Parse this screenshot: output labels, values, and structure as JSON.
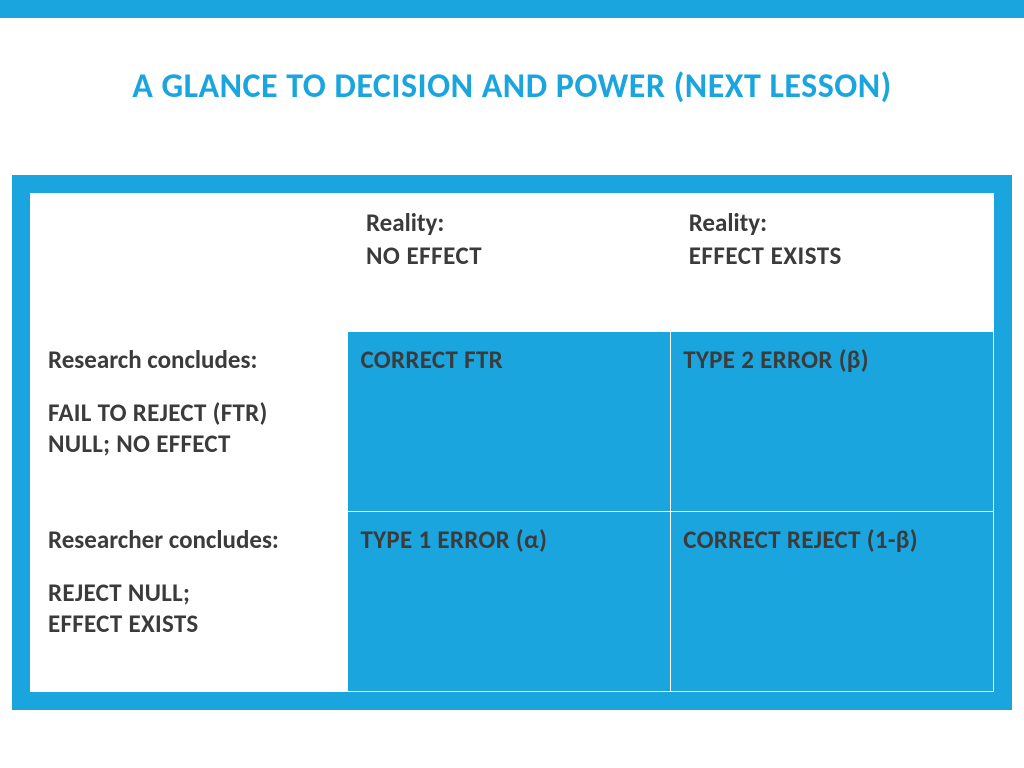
{
  "colors": {
    "accent": "#1ba5de",
    "title": "#1ba5de",
    "text_dark": "#3b3b3b",
    "cell_fill": "#1ba5de",
    "cell_border": "#ffffff",
    "frame_bg": "#1ba5de",
    "page_bg": "#ffffff"
  },
  "title": "A GLANCE TO DECISION AND POWER (NEXT LESSON)",
  "table": {
    "col_headers": [
      {
        "line1": "Reality:",
        "line2": "NO EFFECT"
      },
      {
        "line1": "Reality:",
        "line2": "EFFECT EXISTS"
      }
    ],
    "rows": [
      {
        "label_line1": "Research concludes:",
        "label_line2": "FAIL TO REJECT (FTR)",
        "label_line3": "NULL; NO EFFECT",
        "cells": [
          "CORRECT FTR",
          "TYPE 2 ERROR (β)"
        ]
      },
      {
        "label_line1": "Researcher concludes:",
        "label_line2": "REJECT NULL;",
        "label_line3": "EFFECT EXISTS",
        "cells": [
          "TYPE 1 ERROR (α)",
          "CORRECT REJECT (1-β)"
        ]
      }
    ]
  }
}
